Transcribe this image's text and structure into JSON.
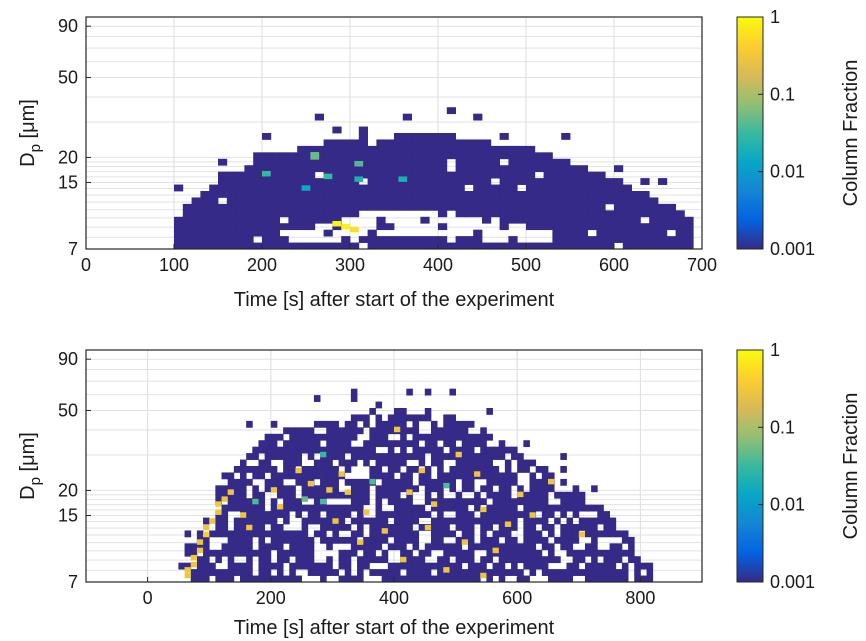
{
  "chart_data": [
    {
      "type": "heatmap",
      "xlabel": "Time [s] after start of the experiment",
      "ylabel_main": "D",
      "ylabel_sub": "p",
      "ylabel_unit": " [μm]",
      "xlim": [
        0,
        700
      ],
      "xticks": [
        "0",
        "100",
        "200",
        "300",
        "400",
        "500",
        "600",
        "700"
      ],
      "xtick_values": [
        0,
        100,
        200,
        300,
        400,
        500,
        600,
        700
      ],
      "y_scale": "log",
      "ylim": [
        7,
        100
      ],
      "yticks": [
        "7",
        "15",
        "20",
        "50",
        "90"
      ],
      "ytick_values": [
        7,
        15,
        20,
        50,
        90
      ],
      "grid": true,
      "colorbar": {
        "label": "Column Fraction",
        "scale": "log",
        "range": [
          0.001,
          1
        ],
        "ticks": [
          "1",
          "0.1",
          "0.01",
          "0.001"
        ],
        "tick_values": [
          1,
          0.1,
          0.01,
          0.001
        ]
      },
      "bin_width_s": 10,
      "distribution": {
        "t_start": 100,
        "t_end": 690,
        "lower_edge": [
          [
            100,
            7
          ],
          [
            700,
            7
          ]
        ],
        "upper_edge": [
          [
            100,
            10
          ],
          [
            150,
            15
          ],
          [
            200,
            20
          ],
          [
            300,
            25
          ],
          [
            400,
            26
          ],
          [
            500,
            22
          ],
          [
            580,
            17
          ],
          [
            640,
            13
          ],
          [
            690,
            10
          ]
        ],
        "gap_lower": [
          [
            220,
            7.5
          ],
          [
            300,
            7.8
          ],
          [
            380,
            8
          ],
          [
            450,
            7.8
          ],
          [
            520,
            7.6
          ]
        ],
        "gap_upper": [
          [
            220,
            8.5
          ],
          [
            300,
            10.5
          ],
          [
            380,
            11
          ],
          [
            450,
            10
          ],
          [
            520,
            8.5
          ]
        ],
        "background_value": 0.001
      },
      "hot_cells": [
        {
          "t": 255,
          "d": 20.5,
          "v": 0.05
        },
        {
          "t": 255,
          "d": 20.0,
          "v": 0.05
        },
        {
          "t": 305,
          "d": 18.5,
          "v": 0.04
        },
        {
          "t": 200,
          "d": 16.5,
          "v": 0.03
        },
        {
          "t": 270,
          "d": 16.0,
          "v": 0.03
        },
        {
          "t": 305,
          "d": 15.5,
          "v": 0.02
        },
        {
          "t": 355,
          "d": 15.5,
          "v": 0.02
        },
        {
          "t": 245,
          "d": 14.0,
          "v": 0.015
        },
        {
          "t": 280,
          "d": 9.3,
          "v": 0.9
        },
        {
          "t": 290,
          "d": 9.0,
          "v": 0.8
        },
        {
          "t": 300,
          "d": 8.7,
          "v": 0.6
        }
      ]
    },
    {
      "type": "heatmap",
      "xlabel": "Time [s] after start of the experiment",
      "ylabel_main": "D",
      "ylabel_sub": "p",
      "ylabel_unit": " [μm]",
      "xlim": [
        -100,
        900
      ],
      "xticks": [
        "0",
        "200",
        "400",
        "600",
        "800"
      ],
      "xtick_values": [
        0,
        200,
        400,
        600,
        800
      ],
      "y_scale": "log",
      "ylim": [
        7,
        100
      ],
      "yticks": [
        "7",
        "15",
        "20",
        "50",
        "90"
      ],
      "ytick_values": [
        7,
        15,
        20,
        50,
        90
      ],
      "grid": true,
      "colorbar": {
        "label": "Column Fraction",
        "scale": "log",
        "range": [
          0.001,
          1
        ],
        "ticks": [
          "1",
          "0.1",
          "0.01",
          "0.001"
        ],
        "tick_values": [
          1,
          0.1,
          0.01,
          0.001
        ]
      },
      "bin_width_s": 10,
      "distribution": {
        "t_start": 50,
        "t_end": 820,
        "lower_edge": [
          [
            50,
            7
          ],
          [
            820,
            7
          ]
        ],
        "upper_edge": [
          [
            50,
            9
          ],
          [
            100,
            15
          ],
          [
            150,
            28
          ],
          [
            200,
            38
          ],
          [
            300,
            45
          ],
          [
            400,
            50
          ],
          [
            500,
            48
          ],
          [
            600,
            30
          ],
          [
            700,
            20
          ],
          [
            780,
            12
          ],
          [
            820,
            8
          ]
        ],
        "background_value": 0.001
      },
      "hot_cells": [
        {
          "t": 60,
          "d": 7.5,
          "v": 0.3
        },
        {
          "t": 60,
          "d": 8.0,
          "v": 0.3
        },
        {
          "t": 70,
          "d": 8.5,
          "v": 0.3
        },
        {
          "t": 70,
          "d": 9.2,
          "v": 0.35
        },
        {
          "t": 80,
          "d": 10.0,
          "v": 0.3
        },
        {
          "t": 80,
          "d": 11.0,
          "v": 0.3
        },
        {
          "t": 90,
          "d": 12.0,
          "v": 0.4
        },
        {
          "t": 90,
          "d": 13.0,
          "v": 0.3
        },
        {
          "t": 100,
          "d": 14.0,
          "v": 0.3
        },
        {
          "t": 110,
          "d": 15.5,
          "v": 0.3
        },
        {
          "t": 110,
          "d": 17.0,
          "v": 0.35
        },
        {
          "t": 120,
          "d": 18.0,
          "v": 0.3
        },
        {
          "t": 130,
          "d": 19.5,
          "v": 0.3
        },
        {
          "t": 150,
          "d": 15.0,
          "v": 0.3
        },
        {
          "t": 170,
          "d": 17.5,
          "v": 0.04
        },
        {
          "t": 160,
          "d": 13.0,
          "v": 0.3
        },
        {
          "t": 200,
          "d": 20.0,
          "v": 0.3
        },
        {
          "t": 210,
          "d": 16.5,
          "v": 0.3
        },
        {
          "t": 240,
          "d": 25.0,
          "v": 0.3
        },
        {
          "t": 250,
          "d": 18.0,
          "v": 0.05
        },
        {
          "t": 260,
          "d": 21.5,
          "v": 0.3
        },
        {
          "t": 280,
          "d": 30.0,
          "v": 0.03
        },
        {
          "t": 280,
          "d": 17.5,
          "v": 0.04
        },
        {
          "t": 290,
          "d": 20.0,
          "v": 0.3
        },
        {
          "t": 300,
          "d": 14.0,
          "v": 0.3
        },
        {
          "t": 310,
          "d": 24.0,
          "v": 0.3
        },
        {
          "t": 320,
          "d": 19.5,
          "v": 0.3
        },
        {
          "t": 340,
          "d": 11.0,
          "v": 0.3
        },
        {
          "t": 350,
          "d": 15.5,
          "v": 0.3
        },
        {
          "t": 360,
          "d": 22.0,
          "v": 0.04
        },
        {
          "t": 380,
          "d": 12.5,
          "v": 0.3
        },
        {
          "t": 400,
          "d": 40.0,
          "v": 0.3
        },
        {
          "t": 410,
          "d": 9.0,
          "v": 0.3
        },
        {
          "t": 420,
          "d": 19.5,
          "v": 0.3
        },
        {
          "t": 440,
          "d": 25.0,
          "v": 0.3
        },
        {
          "t": 450,
          "d": 13.0,
          "v": 0.3
        },
        {
          "t": 460,
          "d": 17.0,
          "v": 0.3
        },
        {
          "t": 480,
          "d": 21.0,
          "v": 0.04
        },
        {
          "t": 500,
          "d": 30.0,
          "v": 0.3
        },
        {
          "t": 510,
          "d": 11.0,
          "v": 0.3
        },
        {
          "t": 530,
          "d": 24.0,
          "v": 0.3
        },
        {
          "t": 540,
          "d": 16.0,
          "v": 0.3
        },
        {
          "t": 560,
          "d": 10.0,
          "v": 0.3
        },
        {
          "t": 580,
          "d": 13.5,
          "v": 0.3
        },
        {
          "t": 600,
          "d": 19.0,
          "v": 0.3
        },
        {
          "t": 620,
          "d": 15.0,
          "v": 0.3
        },
        {
          "t": 650,
          "d": 22.0,
          "v": 0.3
        },
        {
          "t": 480,
          "d": 8.0,
          "v": 0.3
        },
        {
          "t": 540,
          "d": 7.5,
          "v": 0.3
        },
        {
          "t": 700,
          "d": 12.0,
          "v": 0.3
        }
      ]
    }
  ]
}
